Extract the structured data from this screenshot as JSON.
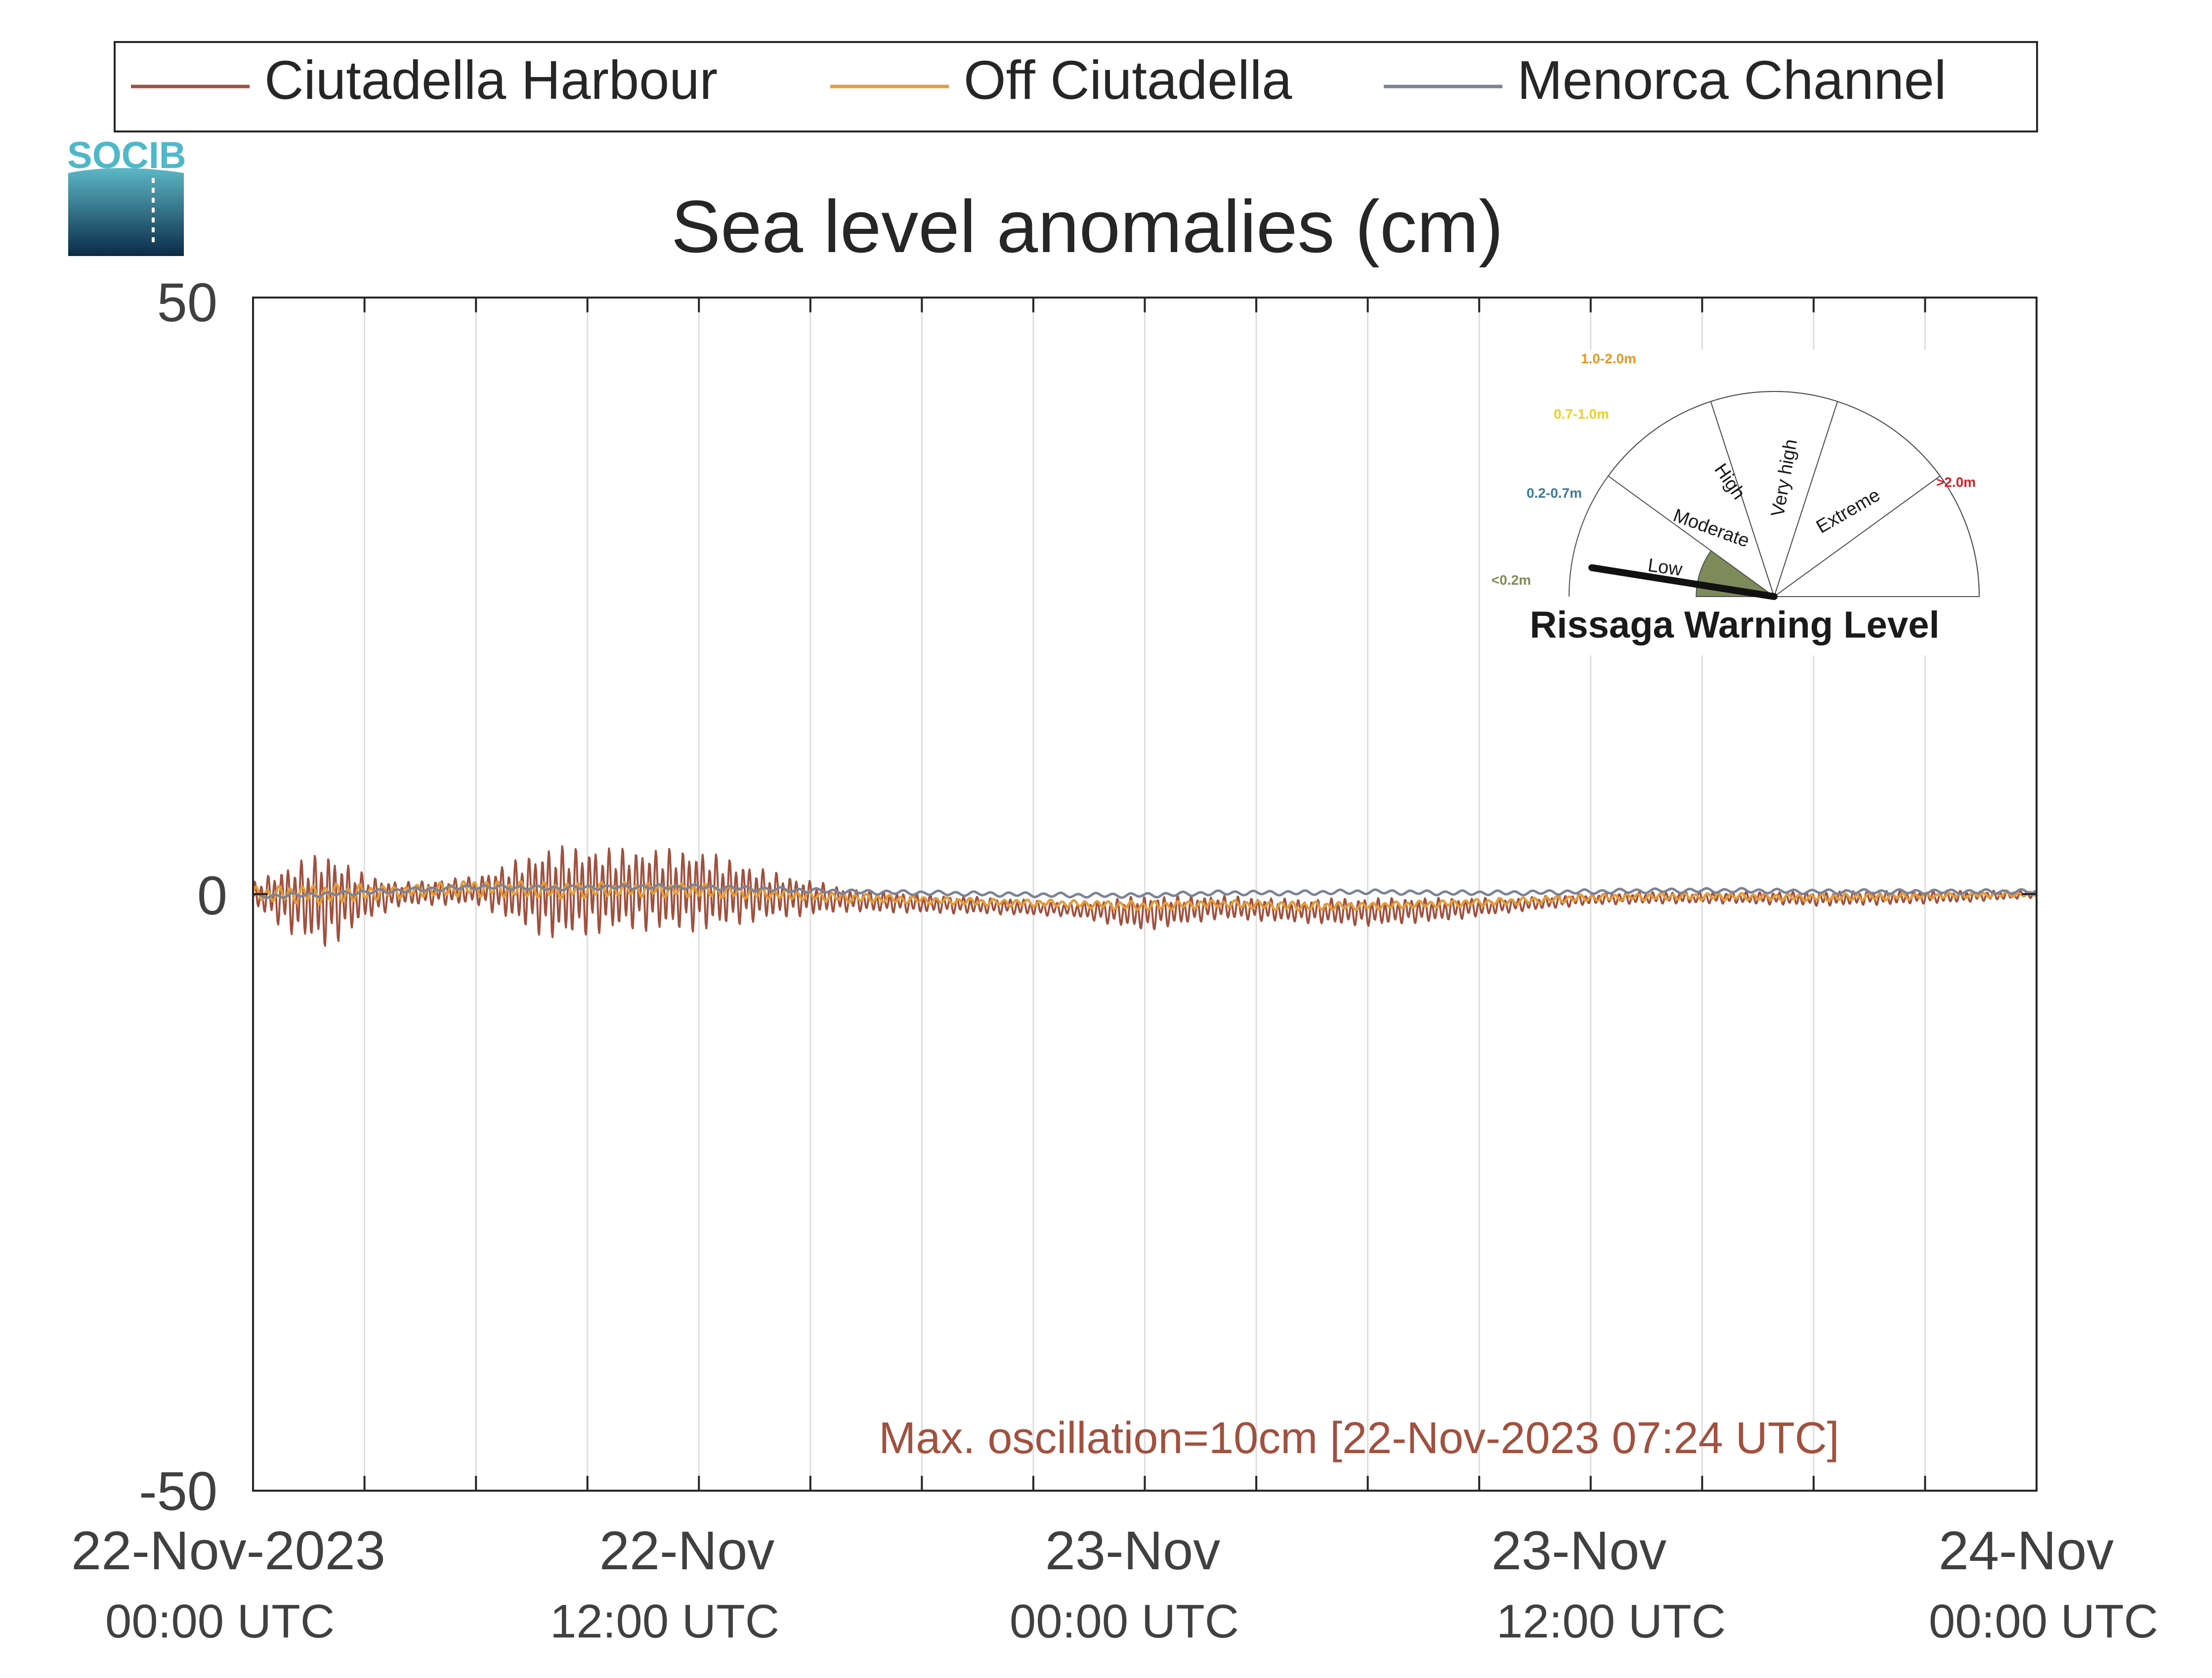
{
  "legend": {
    "items": [
      {
        "label": "Ciutadella Harbour",
        "color": "#a0513f"
      },
      {
        "label": "Off Ciutadella",
        "color": "#e39c3a"
      },
      {
        "label": "Menorca Channel",
        "color": "#7d8396"
      }
    ]
  },
  "logo": {
    "text": "SOCIB",
    "color": "#4fb8c8"
  },
  "chart_data": {
    "type": "line",
    "title": "Sea level anomalies (cm)",
    "xlabel": "",
    "ylabel": "",
    "xlim": [
      "2023-11-22 00:00",
      "2023-11-24 00:00"
    ],
    "ylim": [
      -50,
      50
    ],
    "yticks": [
      -50,
      0,
      50
    ],
    "grid": "vertical",
    "legend_position": "top",
    "x_major_ticks": [
      {
        "date": "22-Nov-2023",
        "time": "00:00 UTC"
      },
      {
        "date": "22-Nov",
        "time": "12:00 UTC"
      },
      {
        "date": "23-Nov",
        "time": "00:00 UTC"
      },
      {
        "date": "23-Nov",
        "time": "12:00 UTC"
      },
      {
        "date": "24-Nov",
        "time": "00:00 UTC"
      }
    ],
    "x_minor_tick_hours": [
      3,
      6,
      9,
      12,
      15,
      18,
      21,
      24,
      27,
      30,
      33,
      36,
      39,
      42,
      45
    ],
    "series": [
      {
        "name": "Ciutadella Harbour",
        "color": "#a0513f",
        "hours": [
          0,
          1,
          2,
          3,
          4,
          6,
          8,
          10,
          12,
          14,
          16,
          18,
          20,
          22,
          24,
          26,
          28,
          30,
          32,
          34,
          36,
          38,
          40,
          42,
          44,
          46,
          48
        ],
        "mean": [
          0,
          -0.4,
          -0.5,
          -0.3,
          0,
          0.3,
          0.1,
          0.4,
          0.3,
          -0.1,
          -0.5,
          -0.8,
          -1.0,
          -1.3,
          -1.6,
          -1.1,
          -1.4,
          -1.5,
          -1.3,
          -0.9,
          -0.4,
          -0.3,
          -0.3,
          -0.4,
          -0.3,
          -0.2,
          0
        ],
        "amplitude": [
          1.0,
          3.0,
          4.2,
          2.0,
          1.0,
          1.2,
          4.0,
          3.5,
          3.5,
          2.0,
          1.0,
          0.8,
          0.7,
          0.6,
          1.5,
          1.0,
          1.0,
          1.2,
          1.0,
          0.6,
          0.5,
          0.5,
          0.5,
          0.6,
          0.6,
          0.5,
          0.3
        ]
      },
      {
        "name": "Off Ciutadella",
        "color": "#e39c3a",
        "hours": [
          0,
          2,
          4,
          6,
          8,
          10,
          12,
          14,
          16,
          18,
          20,
          22,
          24,
          26,
          28,
          30,
          32,
          34,
          36,
          38,
          40,
          42,
          44,
          46,
          48
        ],
        "mean": [
          0,
          0,
          0.2,
          0.5,
          0.3,
          0.4,
          0.3,
          0,
          -0.3,
          -0.5,
          -0.7,
          -0.8,
          -1.0,
          -0.8,
          -1.0,
          -1.0,
          -0.8,
          -0.6,
          -0.3,
          -0.2,
          -0.2,
          -0.3,
          -0.2,
          -0.1,
          0
        ],
        "amplitude": [
          0.6,
          0.9,
          0.5,
          0.7,
          0.7,
          0.6,
          0.6,
          0.4,
          0.4,
          0.3,
          0.3,
          0.3,
          0.4,
          0.3,
          0.4,
          0.3,
          0.3,
          0.3,
          0.3,
          0.3,
          0.3,
          0.3,
          0.3,
          0.2,
          0.2
        ]
      },
      {
        "name": "Menorca Channel",
        "color": "#7d8396",
        "hours": [
          0,
          2,
          4,
          6,
          8,
          10,
          12,
          14,
          16,
          18,
          20,
          22,
          24,
          26,
          28,
          30,
          32,
          34,
          36,
          38,
          40,
          42,
          44,
          46,
          48
        ],
        "mean": [
          -0.2,
          0,
          0.3,
          0.6,
          0.5,
          0.6,
          0.6,
          0.4,
          0.2,
          0.1,
          0,
          -0.1,
          -0.1,
          0.1,
          0.1,
          0.2,
          0.1,
          0.1,
          0.2,
          0.3,
          0.3,
          0.2,
          0.2,
          0.2,
          0.2
        ],
        "amplitude": [
          0.2,
          0.2,
          0.2,
          0.2,
          0.2,
          0.2,
          0.2,
          0.2,
          0.2,
          0.2,
          0.2,
          0.2,
          0.2,
          0.2,
          0.2,
          0.2,
          0.2,
          0.2,
          0.2,
          0.2,
          0.2,
          0.2,
          0.2,
          0.2,
          0.2
        ]
      }
    ],
    "annotation": {
      "text": "Max. oscillation=10cm [22-Nov-2023 07:24 UTC]",
      "color": "#a0513f"
    }
  },
  "gauge": {
    "title": "Rissaga Warning Level",
    "current_level": "Low",
    "needle_fraction": 0.05,
    "segments": [
      {
        "label": "Low",
        "range": "<0.2m",
        "range_color": "#7d8a5a",
        "fill": "#7d8a5a"
      },
      {
        "label": "Moderate",
        "range": "0.2-0.7m",
        "range_color": "#3d7a99",
        "fill": "#ffffff"
      },
      {
        "label": "High",
        "range": "0.7-1.0m",
        "range_color": "#f0d020",
        "fill": "#ffffff"
      },
      {
        "label": "Very high",
        "range": "1.0-2.0m",
        "range_color": "#e8961e",
        "fill": "#ffffff"
      },
      {
        "label": "Extreme",
        "range": ">2.0m",
        "range_color": "#d81e1e",
        "fill": "#ffffff"
      }
    ]
  }
}
